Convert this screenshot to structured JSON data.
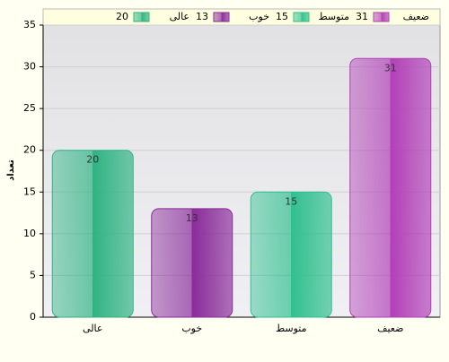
{
  "chart_data": {
    "type": "bar",
    "y_label": "تعداد",
    "categories": [
      "عالی",
      "خوب",
      "متوسط",
      "ضعیف"
    ],
    "values": [
      20,
      13,
      15,
      31
    ],
    "colors": [
      "#2fb383",
      "#8a2b9a",
      "#2fc08e",
      "#b23fb8"
    ],
    "ylim": [
      0,
      35
    ],
    "yticks": [
      0,
      5,
      10,
      15,
      20,
      25,
      30,
      35
    ],
    "grid": true
  }
}
